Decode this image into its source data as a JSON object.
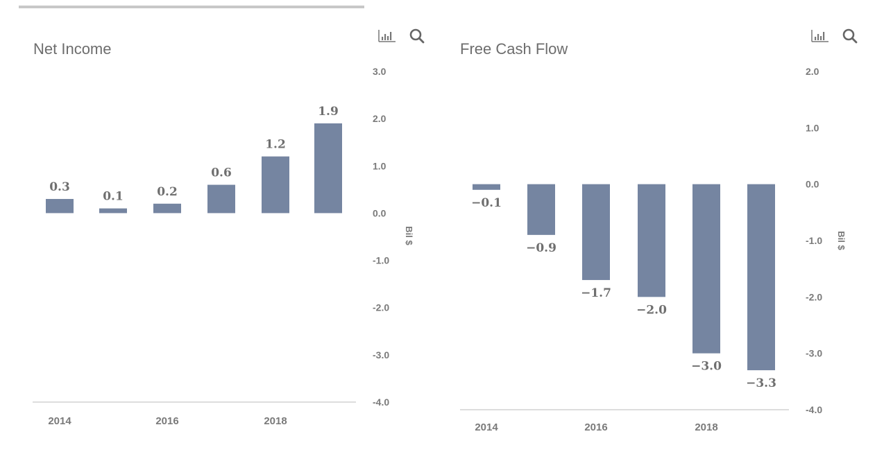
{
  "page": {
    "bar_color": "#7585a1",
    "axis_line_color": "#dddddd",
    "text_color": "#7a7a7a"
  },
  "chart_data": [
    {
      "type": "bar",
      "title": "Net Income",
      "xlabel": "",
      "ylabel": "Bil $",
      "categories": [
        "2014",
        "2015",
        "2016",
        "2017",
        "2018",
        "2019"
      ],
      "values": [
        0.3,
        0.1,
        0.2,
        0.6,
        1.2,
        1.9
      ],
      "data_labels": [
        "0.3",
        "0.1",
        "0.2",
        "0.6",
        "1.2",
        "1.9"
      ],
      "x_tick_labels": [
        "2014",
        "2016",
        "2018"
      ],
      "y_ticks": [
        3.0,
        2.0,
        1.0,
        0.0,
        -1.0,
        -2.0,
        -3.0,
        -4.0
      ],
      "y_tick_labels": [
        "3.0",
        "2.0",
        "1.0",
        "0.0",
        "-1.0",
        "-2.0",
        "-3.0",
        "-4.0"
      ],
      "ylim": [
        -4.0,
        3.0
      ],
      "grid": false,
      "y_axis_position": "right",
      "toolbar": {
        "chart_icon": "bar-chart-icon",
        "search_icon": "search-icon"
      }
    },
    {
      "type": "bar",
      "title": "Free Cash Flow",
      "xlabel": "",
      "ylabel": "Bil $",
      "categories": [
        "2014",
        "2015",
        "2016",
        "2017",
        "2018",
        "2019"
      ],
      "values": [
        -0.1,
        -0.9,
        -1.7,
        -2.0,
        -3.0,
        -3.3
      ],
      "data_labels": [
        "−0.1",
        "−0.9",
        "−1.7",
        "−2.0",
        "−3.0",
        "−3.3"
      ],
      "x_tick_labels": [
        "2014",
        "2016",
        "2018"
      ],
      "y_ticks": [
        2.0,
        1.0,
        0.0,
        -1.0,
        -2.0,
        -3.0,
        -4.0
      ],
      "y_tick_labels": [
        "2.0",
        "1.0",
        "0.0",
        "-1.0",
        "-2.0",
        "-3.0",
        "-4.0"
      ],
      "ylim": [
        -4.0,
        2.0
      ],
      "grid": false,
      "y_axis_position": "right",
      "toolbar": {
        "chart_icon": "bar-chart-icon",
        "search_icon": "search-icon"
      }
    }
  ]
}
